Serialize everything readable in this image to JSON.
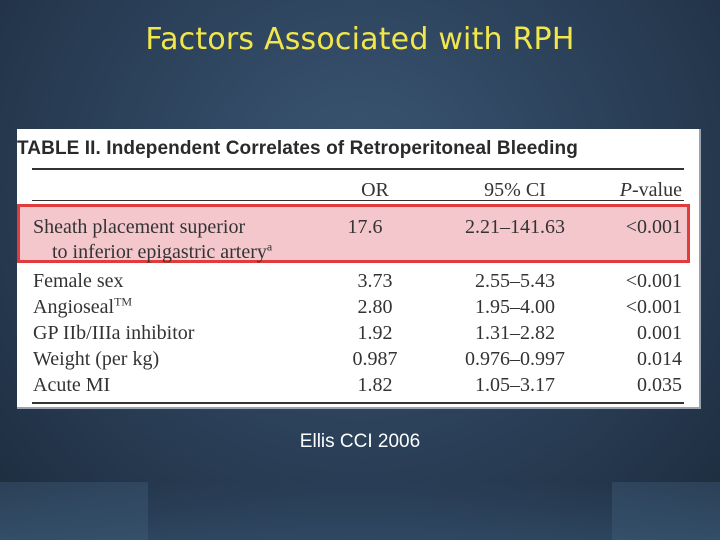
{
  "slide": {
    "title": "Factors Associated with RPH",
    "reference": "Ellis  CCI 2006"
  },
  "table": {
    "caption": "TABLE II.  Independent Correlates of Retroperitoneal Bleeding",
    "headers": {
      "or": "OR",
      "ci": "95% CI",
      "p_prefix": "P",
      "p_suffix": "-value"
    },
    "highlight_color": "#e23b3b",
    "highlight_fill": "#f4c7cc",
    "highlighted_row": {
      "label_line1": "Sheath placement superior",
      "label_line2": "to inferior epigastric artery",
      "label_sup": "a",
      "or": "17.6",
      "ci": "2.21–141.63",
      "p": "<0.001"
    },
    "rows": [
      {
        "label": "Female sex",
        "sup": "",
        "or": "3.73",
        "ci": "2.55–5.43",
        "p": "<0.001"
      },
      {
        "label": "Angioseal",
        "sup": "TM",
        "or": "2.80",
        "ci": "1.95–4.00",
        "p": "<0.001"
      },
      {
        "label": "GP IIb/IIIa inhibitor",
        "sup": "",
        "or": "1.92",
        "ci": "1.31–2.82",
        "p": "0.001"
      },
      {
        "label": "Weight (per kg)",
        "sup": "",
        "or": "0.987",
        "ci": "0.976–0.997",
        "p": "0.014"
      },
      {
        "label": "Acute MI",
        "sup": "",
        "or": "1.82",
        "ci": "1.05–3.17",
        "p": "0.035"
      }
    ]
  }
}
